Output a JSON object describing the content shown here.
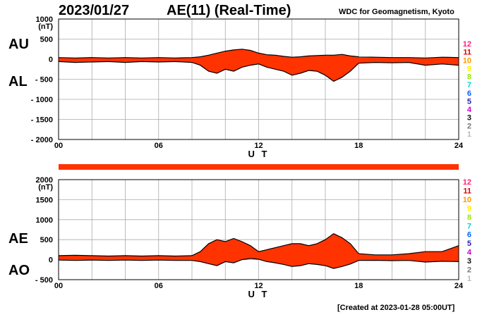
{
  "header": {
    "date": "2023/01/27",
    "title": "AE(11) (Real-Time)",
    "credit": "WDC for Geomagnetism, Kyoto",
    "created": "[Created at 2023-01-28 05:00UT]"
  },
  "legend": {
    "entries": [
      {
        "label": "12",
        "color": "#ff1f7a"
      },
      {
        "label": "11",
        "color": "#e00000"
      },
      {
        "label": "10",
        "color": "#ff9900"
      },
      {
        "label": "9",
        "color": "#ffee00"
      },
      {
        "label": "8",
        "color": "#99e600"
      },
      {
        "label": "7",
        "color": "#00d4d4"
      },
      {
        "label": "6",
        "color": "#0066ff"
      },
      {
        "label": "5",
        "color": "#2a1fb0"
      },
      {
        "label": "4",
        "color": "#cc00cc"
      },
      {
        "label": "3",
        "color": "#111111"
      },
      {
        "label": "2",
        "color": "#777777"
      },
      {
        "label": "1",
        "color": "#bbbbbb"
      }
    ]
  },
  "colors": {
    "fill": "#ff3300",
    "gap": "#f5a01a",
    "line": "#000000",
    "grid": "#aaaaaa"
  },
  "chart_data": [
    {
      "type": "area",
      "name": "AU/AL panel",
      "series_labels": [
        "AU",
        "AL"
      ],
      "xlabel": "U T",
      "ylabel": "(nT)",
      "xlim": [
        0,
        24
      ],
      "ylim": [
        -2000,
        1000
      ],
      "yticks": [
        1000,
        500,
        0,
        -500,
        -1000,
        -1500,
        -2000
      ],
      "ytick_labels": [
        "1000",
        "500",
        "0",
        "- 500",
        "- 1000",
        "- 1500",
        "- 2000"
      ],
      "xticks": [
        0,
        6,
        12,
        18,
        24
      ],
      "xtick_labels": [
        "00",
        "06",
        "12",
        "18",
        "24"
      ],
      "x": [
        0,
        1,
        2,
        3,
        4,
        5,
        6,
        7,
        8,
        8.5,
        9,
        9.5,
        10,
        10.5,
        11,
        11.5,
        12,
        12.5,
        13,
        13.5,
        14,
        14.5,
        15,
        15.5,
        16,
        16.5,
        17,
        17.5,
        18,
        19,
        20,
        21,
        22,
        23,
        24
      ],
      "series": [
        {
          "name": "AU",
          "values": [
            40,
            30,
            40,
            30,
            40,
            30,
            40,
            30,
            40,
            60,
            100,
            150,
            200,
            230,
            250,
            220,
            150,
            110,
            100,
            70,
            50,
            60,
            80,
            90,
            100,
            100,
            120,
            80,
            60,
            50,
            40,
            40,
            30,
            50,
            40
          ]
        },
        {
          "name": "AL",
          "values": [
            -60,
            -80,
            -70,
            -60,
            -80,
            -60,
            -70,
            -60,
            -80,
            -150,
            -300,
            -350,
            -250,
            -300,
            -200,
            -150,
            -120,
            -200,
            -250,
            -300,
            -400,
            -350,
            -280,
            -300,
            -400,
            -550,
            -450,
            -300,
            -100,
            -80,
            -90,
            -80,
            -150,
            -120,
            -150
          ]
        }
      ]
    },
    {
      "type": "area",
      "name": "AE/AO panel",
      "series_labels": [
        "AE",
        "AO"
      ],
      "xlabel": "U T",
      "ylabel": "(nT)",
      "xlim": [
        0,
        24
      ],
      "ylim": [
        -500,
        2000
      ],
      "yticks": [
        2000,
        1500,
        1000,
        500,
        0,
        -500
      ],
      "ytick_labels": [
        "2000",
        "1500",
        "1000",
        "500",
        "0",
        "- 500"
      ],
      "xticks": [
        0,
        6,
        12,
        18,
        24
      ],
      "xtick_labels": [
        "00",
        "06",
        "12",
        "18",
        "24"
      ],
      "x": [
        0,
        1,
        2,
        3,
        4,
        5,
        6,
        7,
        8,
        8.5,
        9,
        9.5,
        10,
        10.5,
        11,
        11.5,
        12,
        12.5,
        13,
        13.5,
        14,
        14.5,
        15,
        15.5,
        16,
        16.5,
        17,
        17.5,
        18,
        19,
        20,
        21,
        22,
        23,
        24
      ],
      "series": [
        {
          "name": "AE",
          "values": [
            100,
            110,
            100,
            90,
            100,
            90,
            100,
            90,
            100,
            200,
            400,
            500,
            450,
            530,
            450,
            350,
            200,
            250,
            300,
            350,
            400,
            400,
            350,
            400,
            500,
            650,
            550,
            400,
            150,
            120,
            120,
            150,
            200,
            200,
            350
          ]
        },
        {
          "name": "AO",
          "values": [
            -10,
            -20,
            -10,
            -20,
            -10,
            -20,
            -10,
            -20,
            -20,
            -50,
            -100,
            -150,
            -50,
            -80,
            0,
            30,
            10,
            -50,
            -80,
            -120,
            -170,
            -150,
            -100,
            -120,
            -150,
            -220,
            -170,
            -110,
            -20,
            -15,
            -25,
            -20,
            -60,
            -40,
            -50
          ]
        }
      ]
    }
  ]
}
